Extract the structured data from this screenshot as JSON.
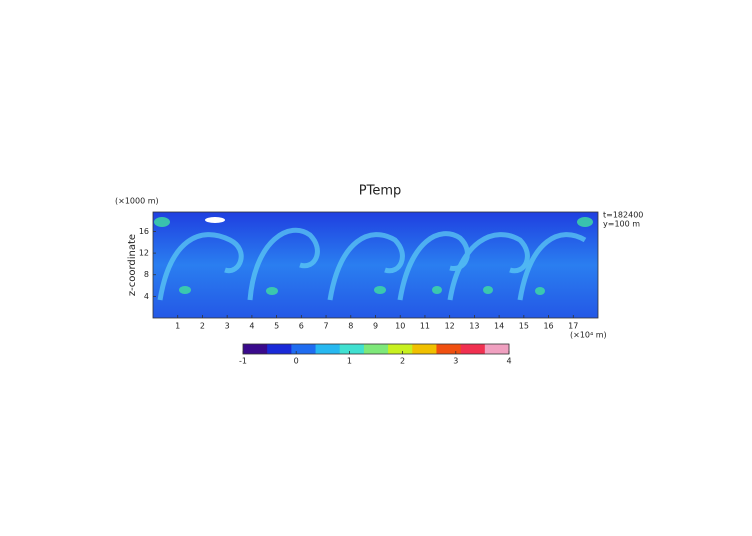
{
  "chart_data": {
    "type": "heatmap",
    "title": "PTemp",
    "y_label": "z-coordinate",
    "y_unit": "(×1000 m)",
    "x_unit": "(×10⁴ m)",
    "annotations": [
      "t=182400",
      "y=100 m"
    ],
    "xlim": [
      0,
      18
    ],
    "xticks": [
      1,
      2,
      3,
      4,
      5,
      6,
      7,
      8,
      9,
      10,
      11,
      12,
      13,
      14,
      15,
      16,
      17
    ],
    "ylim": [
      0,
      19.6
    ],
    "yticks": [
      4,
      8,
      12,
      16
    ],
    "colorbar": {
      "lim": [
        -1,
        4
      ],
      "ticks": [
        -1,
        0,
        1,
        2,
        3,
        4
      ],
      "colors": [
        "#3a0a8c",
        "#1a2ad8",
        "#1f6cf0",
        "#27b8f0",
        "#40e0d0",
        "#7ee87a",
        "#c8f020",
        "#f0c000",
        "#f05010",
        "#f03050",
        "#f0a0c0"
      ]
    }
  }
}
